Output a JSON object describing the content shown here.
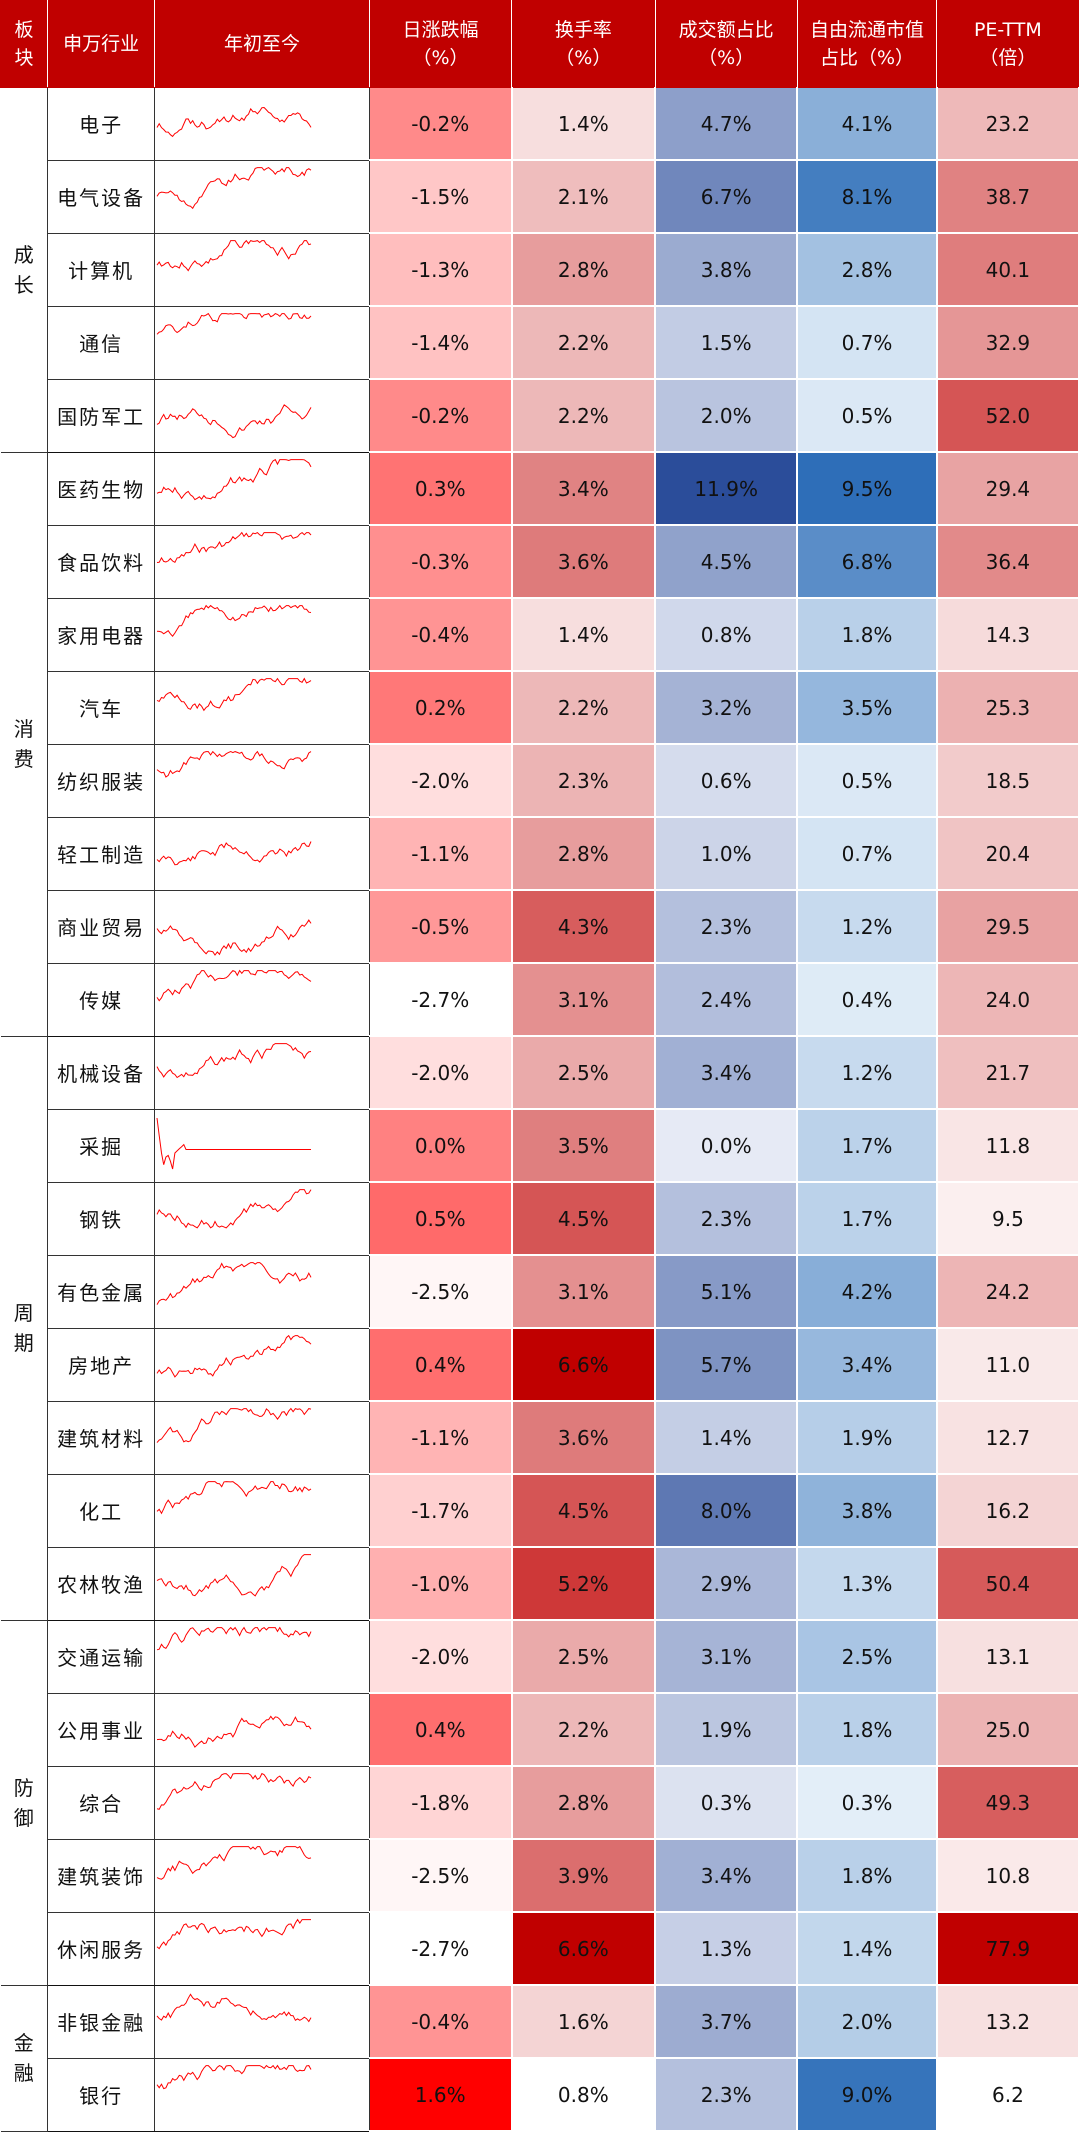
{
  "chart_data": {
    "type": "table",
    "columns": [
      {
        "line1": "板",
        "line2": "块"
      },
      {
        "line1": "申万行业",
        "line2": ""
      },
      {
        "line1": "年初至今",
        "line2": ""
      },
      {
        "line1": "日涨跌幅",
        "line2": "（%）"
      },
      {
        "line1": "换手率",
        "line2": "（%）"
      },
      {
        "line1": "成交额占比",
        "line2": "（%）"
      },
      {
        "line1": "自由流通市值",
        "line2": "占比（%）"
      },
      {
        "line1": "PE-TTM",
        "line2": "（倍）"
      }
    ],
    "sectors": [
      {
        "name_top": "成",
        "name_bottom": "长",
        "rows": 5
      },
      {
        "name_top": "消",
        "name_bottom": "费",
        "rows": 8
      },
      {
        "name_top": "周",
        "name_bottom": "期",
        "rows": 8
      },
      {
        "name_top": "防",
        "name_bottom": "御",
        "rows": 5
      },
      {
        "name_top": "金",
        "name_bottom": "融",
        "rows": 2
      }
    ],
    "rows": [
      {
        "industry": "电子",
        "daily": "-0.2%",
        "turnover": "1.4%",
        "volume_share": "4.7%",
        "float_share": "4.1%",
        "pe": "23.2",
        "spark_seed": 1
      },
      {
        "industry": "电气设备",
        "daily": "-1.5%",
        "turnover": "2.1%",
        "volume_share": "6.7%",
        "float_share": "8.1%",
        "pe": "38.7",
        "spark_seed": 2
      },
      {
        "industry": "计算机",
        "daily": "-1.3%",
        "turnover": "2.8%",
        "volume_share": "3.8%",
        "float_share": "2.8%",
        "pe": "40.1",
        "spark_seed": 3
      },
      {
        "industry": "通信",
        "daily": "-1.4%",
        "turnover": "2.2%",
        "volume_share": "1.5%",
        "float_share": "0.7%",
        "pe": "32.9",
        "spark_seed": 4
      },
      {
        "industry": "国防军工",
        "daily": "-0.2%",
        "turnover": "2.2%",
        "volume_share": "2.0%",
        "float_share": "0.5%",
        "pe": "52.0",
        "spark_seed": 5
      },
      {
        "industry": "医药生物",
        "daily": "0.3%",
        "turnover": "3.4%",
        "volume_share": "11.9%",
        "float_share": "9.5%",
        "pe": "29.4",
        "spark_seed": 6
      },
      {
        "industry": "食品饮料",
        "daily": "-0.3%",
        "turnover": "3.6%",
        "volume_share": "4.5%",
        "float_share": "6.8%",
        "pe": "36.4",
        "spark_seed": 7
      },
      {
        "industry": "家用电器",
        "daily": "-0.4%",
        "turnover": "1.4%",
        "volume_share": "0.8%",
        "float_share": "1.8%",
        "pe": "14.3",
        "spark_seed": 8
      },
      {
        "industry": "汽车",
        "daily": "0.2%",
        "turnover": "2.2%",
        "volume_share": "3.2%",
        "float_share": "3.5%",
        "pe": "25.3",
        "spark_seed": 9
      },
      {
        "industry": "纺织服装",
        "daily": "-2.0%",
        "turnover": "2.3%",
        "volume_share": "0.6%",
        "float_share": "0.5%",
        "pe": "18.5",
        "spark_seed": 10
      },
      {
        "industry": "轻工制造",
        "daily": "-1.1%",
        "turnover": "2.8%",
        "volume_share": "1.0%",
        "float_share": "0.7%",
        "pe": "20.4",
        "spark_seed": 11
      },
      {
        "industry": "商业贸易",
        "daily": "-0.5%",
        "turnover": "4.3%",
        "volume_share": "2.3%",
        "float_share": "1.2%",
        "pe": "29.5",
        "spark_seed": 12
      },
      {
        "industry": "传媒",
        "daily": "-2.7%",
        "turnover": "3.1%",
        "volume_share": "2.4%",
        "float_share": "0.4%",
        "pe": "24.0",
        "spark_seed": 13
      },
      {
        "industry": "机械设备",
        "daily": "-2.0%",
        "turnover": "2.5%",
        "volume_share": "3.4%",
        "float_share": "1.2%",
        "pe": "21.7",
        "spark_seed": 14
      },
      {
        "industry": "采掘",
        "daily": "0.0%",
        "turnover": "3.5%",
        "volume_share": "0.0%",
        "float_share": "1.7%",
        "pe": "11.8",
        "spark_seed": 0
      },
      {
        "industry": "钢铁",
        "daily": "0.5%",
        "turnover": "4.5%",
        "volume_share": "2.3%",
        "float_share": "1.7%",
        "pe": "9.5",
        "spark_seed": 16
      },
      {
        "industry": "有色金属",
        "daily": "-2.5%",
        "turnover": "3.1%",
        "volume_share": "5.1%",
        "float_share": "4.2%",
        "pe": "24.2",
        "spark_seed": 17
      },
      {
        "industry": "房地产",
        "daily": "0.4%",
        "turnover": "6.6%",
        "volume_share": "5.7%",
        "float_share": "3.4%",
        "pe": "11.0",
        "spark_seed": 18
      },
      {
        "industry": "建筑材料",
        "daily": "-1.1%",
        "turnover": "3.6%",
        "volume_share": "1.4%",
        "float_share": "1.9%",
        "pe": "12.7",
        "spark_seed": 19
      },
      {
        "industry": "化工",
        "daily": "-1.7%",
        "turnover": "4.5%",
        "volume_share": "8.0%",
        "float_share": "3.8%",
        "pe": "16.2",
        "spark_seed": 20
      },
      {
        "industry": "农林牧渔",
        "daily": "-1.0%",
        "turnover": "5.2%",
        "volume_share": "2.9%",
        "float_share": "1.3%",
        "pe": "50.4",
        "spark_seed": 21
      },
      {
        "industry": "交通运输",
        "daily": "-2.0%",
        "turnover": "2.5%",
        "volume_share": "3.1%",
        "float_share": "2.5%",
        "pe": "13.1",
        "spark_seed": 22
      },
      {
        "industry": "公用事业",
        "daily": "0.4%",
        "turnover": "2.2%",
        "volume_share": "1.9%",
        "float_share": "1.8%",
        "pe": "25.0",
        "spark_seed": 23
      },
      {
        "industry": "综合",
        "daily": "-1.8%",
        "turnover": "2.8%",
        "volume_share": "0.3%",
        "float_share": "0.3%",
        "pe": "49.3",
        "spark_seed": 24
      },
      {
        "industry": "建筑装饰",
        "daily": "-2.5%",
        "turnover": "3.9%",
        "volume_share": "3.4%",
        "float_share": "1.8%",
        "pe": "10.8",
        "spark_seed": 25
      },
      {
        "industry": "休闲服务",
        "daily": "-2.7%",
        "turnover": "6.6%",
        "volume_share": "1.3%",
        "float_share": "1.4%",
        "pe": "77.9",
        "spark_seed": 26
      },
      {
        "industry": "非银金融",
        "daily": "-0.4%",
        "turnover": "1.6%",
        "volume_share": "3.7%",
        "float_share": "2.0%",
        "pe": "13.2",
        "spark_seed": 27
      },
      {
        "industry": "银行",
        "daily": "1.6%",
        "turnover": "0.8%",
        "volume_share": "2.3%",
        "float_share": "9.0%",
        "pe": "6.2",
        "spark_seed": 28
      }
    ],
    "colors": {
      "header_bg": "#c00000",
      "header_text": "#ffffff",
      "red_low": "#ffffff",
      "red_high": "#c00000",
      "red_max_bright": "#ff0000",
      "blue_low": "#e6eaf5",
      "blue_high": "#2b4d9a",
      "float_low": "#e3eef8",
      "float_high": "#2e6eb8",
      "spark_line": "#ff0000"
    }
  }
}
